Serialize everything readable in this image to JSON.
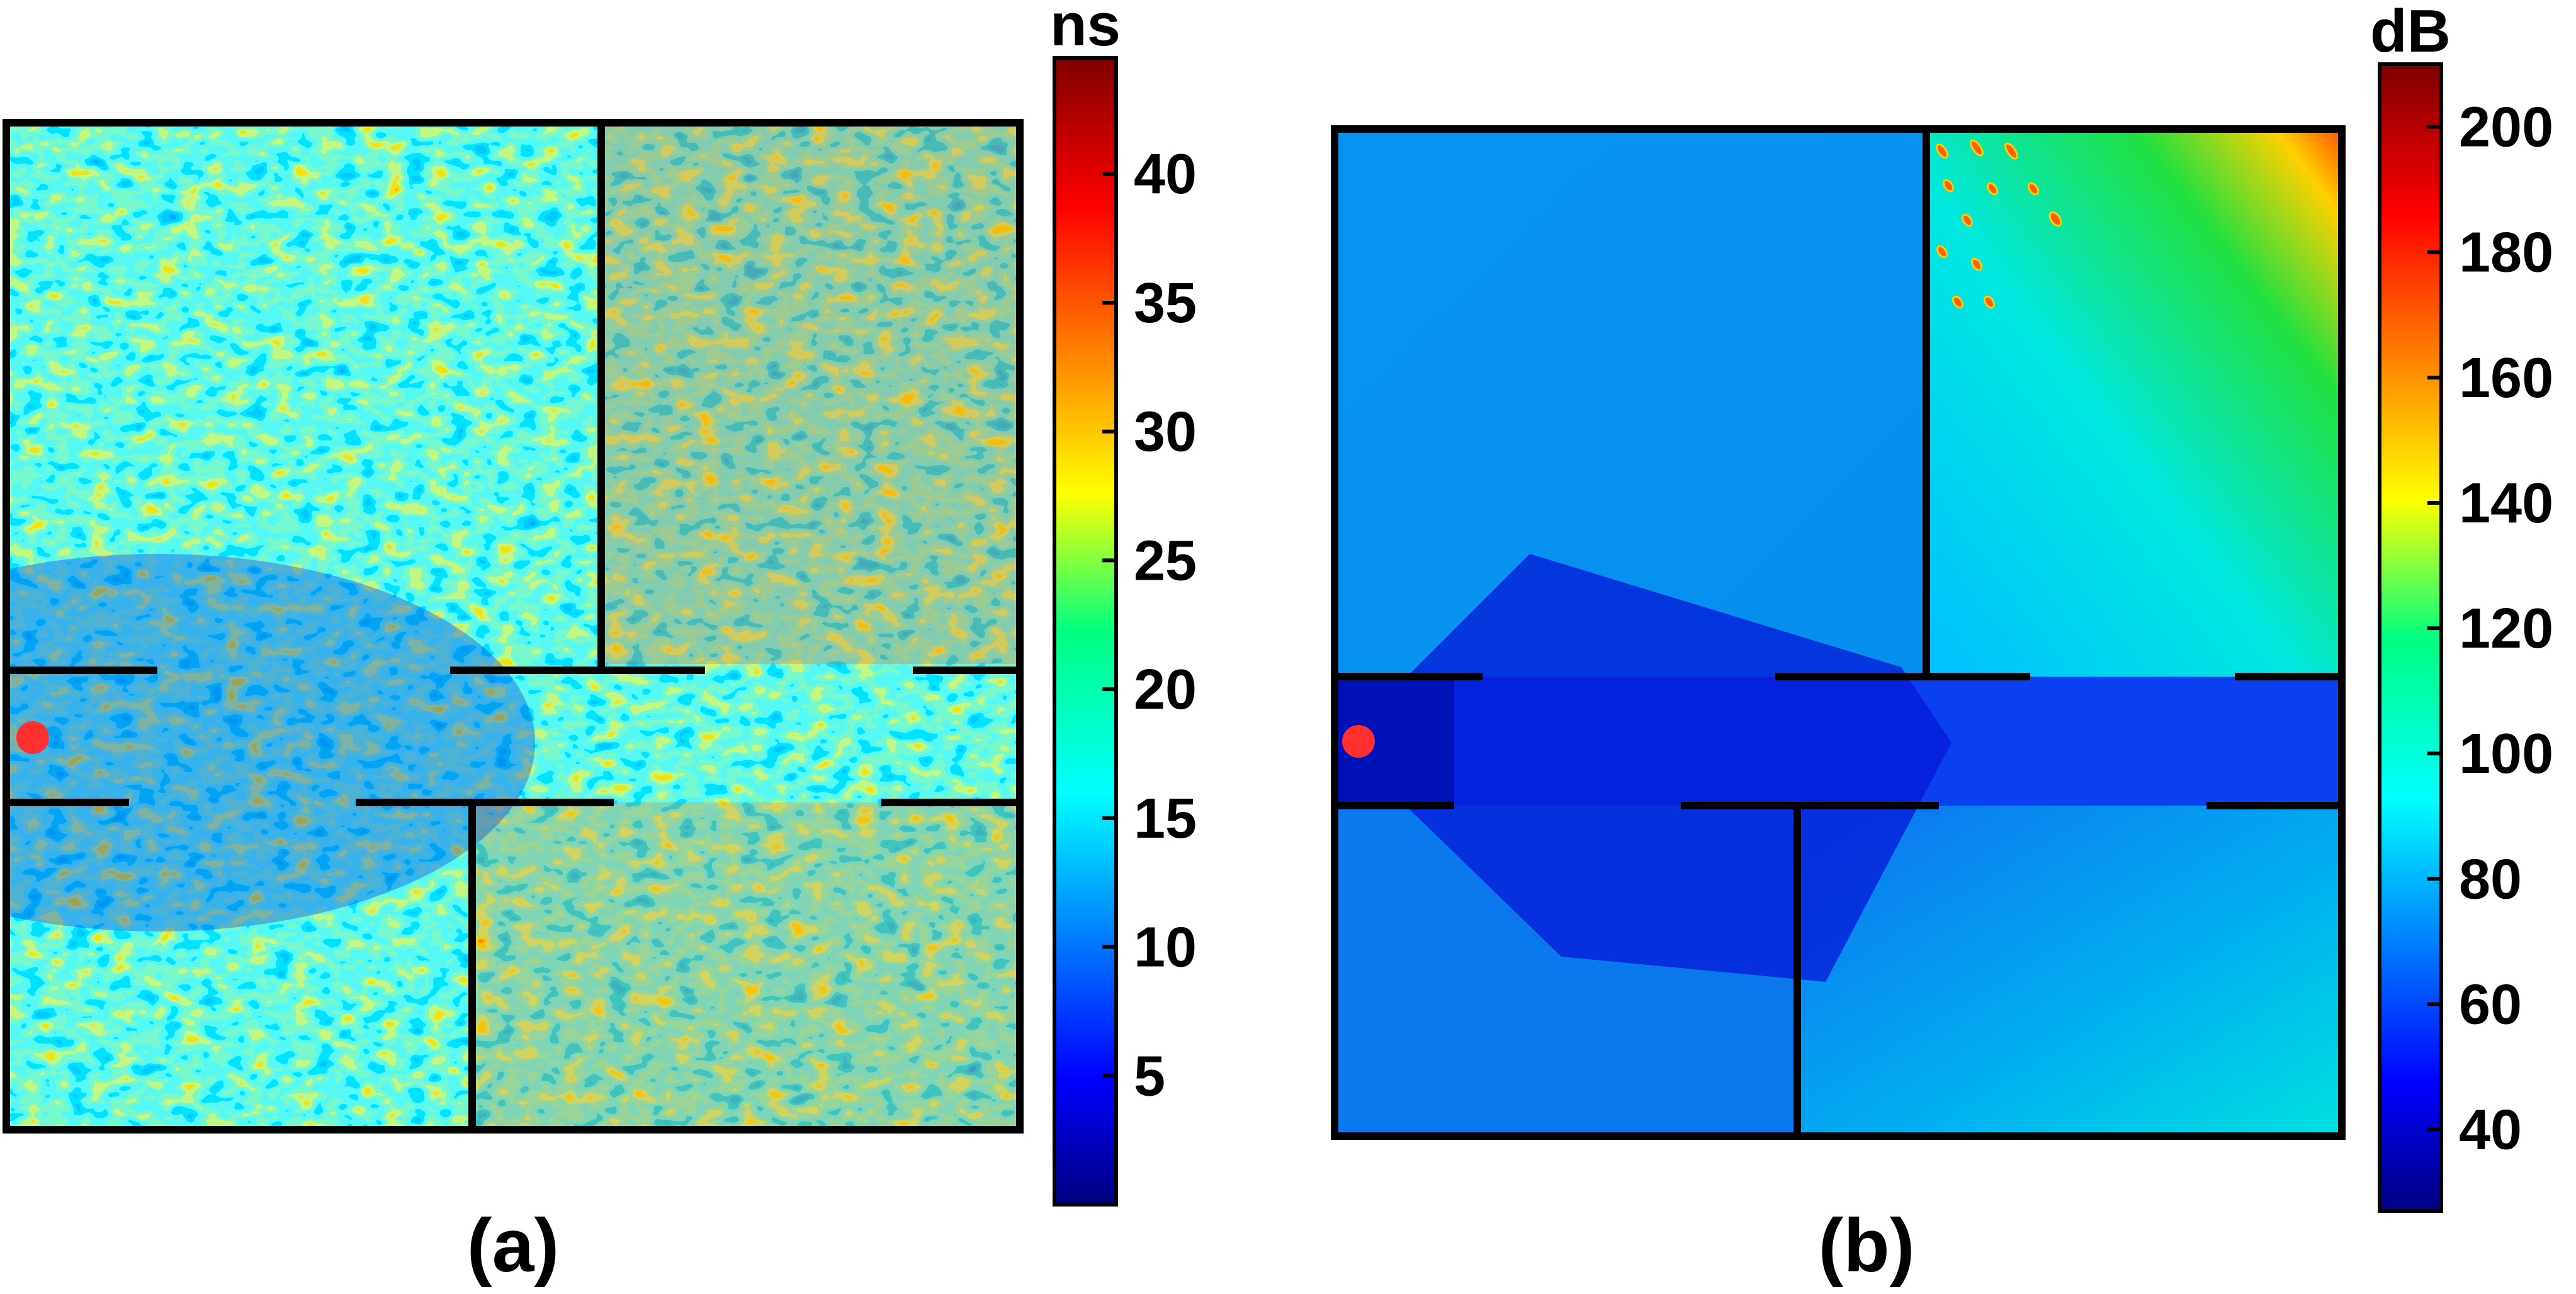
{
  "chart_data": [
    {
      "type": "heatmap",
      "caption": "(a)",
      "colorbar": {
        "unit": "ns",
        "min": 0,
        "max": 44.5,
        "ticks": [
          5,
          10,
          15,
          20,
          25,
          30,
          35,
          40
        ],
        "colormap": "jet"
      },
      "markers": [
        {
          "name": "transmitter",
          "color": "#ff3030"
        }
      ]
    },
    {
      "type": "heatmap",
      "caption": "(b)",
      "colorbar": {
        "unit": "dB",
        "min": 27,
        "max": 210,
        "ticks": [
          40,
          60,
          80,
          100,
          120,
          140,
          160,
          180,
          200
        ],
        "colormap": "jet"
      },
      "markers": [
        {
          "name": "transmitter",
          "color": "#ff3030"
        }
      ]
    }
  ]
}
